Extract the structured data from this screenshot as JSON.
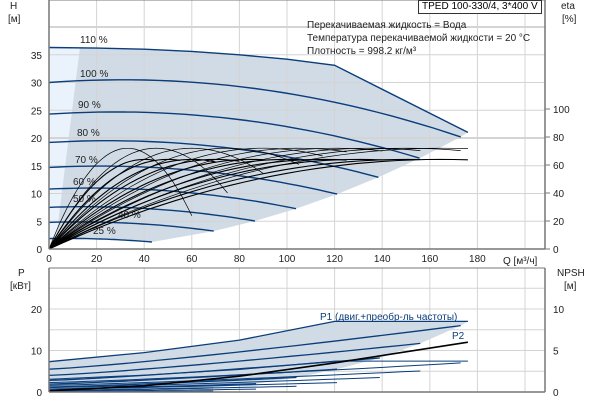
{
  "chart_data": [
    {
      "type": "line",
      "title": "TPED 100-330/4, 3*400 V",
      "info": [
        "Перекачиваемая жидкость = Вода",
        "Температура перекачиваемой жидкости = 20 °C",
        "Плотность = 998.2 кг/м³"
      ],
      "xlabel": "Q [м³/ч]",
      "ylabel_left": "H",
      "ylabel_left_unit": "[м]",
      "ylabel_right": "eta",
      "ylabel_right_unit": "[%]",
      "xlim": [
        0,
        208
      ],
      "ylim_left": [
        0,
        45
      ],
      "ylim_right": [
        0,
        175
      ],
      "x_ticks": [
        "0",
        "20",
        "40",
        "60",
        "80",
        "100",
        "120",
        "140",
        "160",
        "180"
      ],
      "y_left_ticks": [
        "0",
        "5",
        "10",
        "15",
        "20",
        "25",
        "30",
        "35"
      ],
      "y_right_ticks": [
        "0",
        "20",
        "40",
        "60",
        "80",
        "100"
      ],
      "grid": true,
      "head_base_curve": {
        "H0": 30,
        "b": 0.0317,
        "c": 0.000511,
        "q_max": 173
      },
      "speed_curves": [
        {
          "label": "110 %",
          "speed": 1.1,
          "points": [
            [
              0,
              36.3
            ],
            [
              20,
              36.2
            ],
            [
              40,
              36
            ],
            [
              60,
              35.6
            ],
            [
              80,
              35
            ],
            [
              100,
              34.2
            ],
            [
              120,
              33.1
            ],
            [
              176,
              21
            ]
          ]
        },
        {
          "label": "100 %",
          "speed": 1.0
        },
        {
          "label": "90 %",
          "speed": 0.9
        },
        {
          "label": "80 %",
          "speed": 0.8
        },
        {
          "label": "70 %",
          "speed": 0.7
        },
        {
          "label": "60 %",
          "speed": 0.6
        },
        {
          "label": "50 %",
          "speed": 0.5
        },
        {
          "label": "40 %",
          "speed": 0.4
        },
        {
          "label": "25 %",
          "speed": 0.25
        }
      ],
      "eta_pump_curves": {
        "eta_max": 72,
        "q_bep": [
          33,
          45,
          60,
          75,
          90,
          105,
          120,
          135,
          150,
          165
        ],
        "q_end": [
          60,
          75,
          90,
          105,
          115,
          125,
          140,
          156,
          173,
          176
        ]
      },
      "eta_total_curves": {
        "eta_max": 64,
        "q_bep": [
          40,
          50,
          60,
          70,
          85,
          100,
          115,
          130,
          150,
          165
        ],
        "q_end": [
          45,
          55,
          70,
          80,
          90,
          105,
          125,
          140,
          156,
          176
        ]
      },
      "colors": {
        "curve": "#0a3d7a",
        "region": "#d0dbe6",
        "region_light": "#eaf2fb",
        "eta": "#000000",
        "grid": "#d4d4d4"
      }
    },
    {
      "type": "line",
      "ylabel_left": "P",
      "ylabel_left_unit": "[кВт]",
      "ylabel_right": "NPSH",
      "ylabel_right_unit": "[м]",
      "ylim_left": [
        0,
        30
      ],
      "ylim_right": [
        0,
        15
      ],
      "y_left_ticks": [
        "0",
        "10",
        "20"
      ],
      "y_right_ticks": [
        "0",
        "5",
        "10"
      ],
      "p1_label": "P1 (двиг.+преобр-ль частоты)",
      "p2_label": "P2",
      "p1_curves": [
        {
          "speed": 1.1,
          "points": [
            [
              0,
              7.3
            ],
            [
              40,
              9.5
            ],
            [
              80,
              12.5
            ],
            [
              120,
              17
            ],
            [
              176,
              17
            ]
          ]
        },
        {
          "speed": 1.0,
          "P0": 5.5,
          "P_end": 16,
          "q_end": 173
        },
        {
          "speed": 0.9,
          "P0": 4.0,
          "P_end": 11.7,
          "q_end": 156
        },
        {
          "speed": 0.8,
          "P0": 2.8,
          "P_end": 8.2,
          "q_end": 139
        },
        {
          "speed": 0.7,
          "P0": 1.9,
          "P_end": 5.5,
          "q_end": 121
        },
        {
          "speed": 0.6,
          "P0": 1.2,
          "P_end": 3.5,
          "q_end": 104
        },
        {
          "speed": 0.5,
          "P0": 0.7,
          "P_end": 2.0,
          "q_end": 87
        },
        {
          "speed": 0.4,
          "P0": 0.35,
          "P_end": 1.0,
          "q_end": 69
        },
        {
          "speed": 0.25,
          "P0": 0.1,
          "P_end": 0.3,
          "q_end": 43
        }
      ],
      "p2_curve": {
        "points": [
          [
            0,
            0.3
          ],
          [
            40,
            1.5
          ],
          [
            80,
            3.8
          ],
          [
            120,
            7
          ],
          [
            176,
            12
          ]
        ]
      }
    }
  ]
}
